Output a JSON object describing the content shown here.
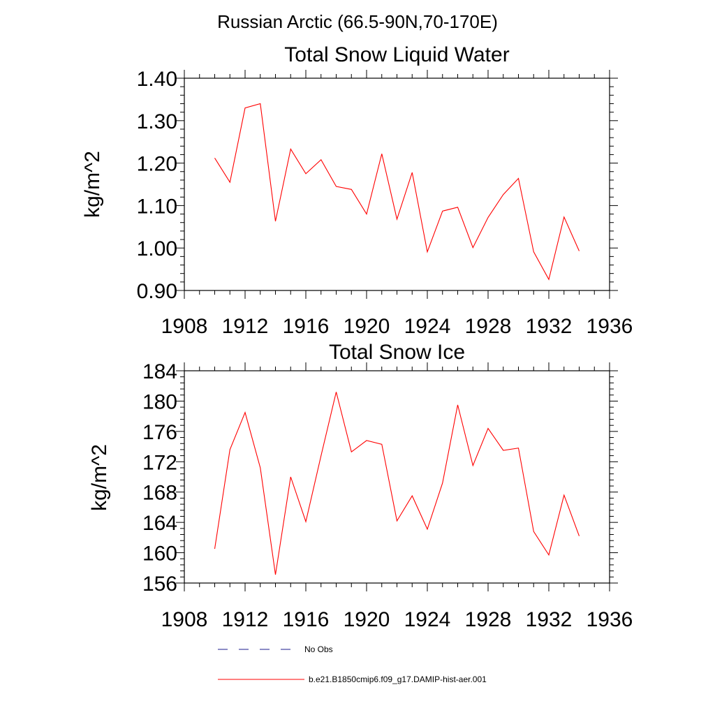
{
  "suptitle": "Russian Arctic (66.5-90N,70-170E)",
  "colors": {
    "model": "#ff0000",
    "obs": "#1a1a8c",
    "axis": "#000000"
  },
  "legend": {
    "entries": [
      {
        "label": "No Obs",
        "style": "dashed",
        "color": "#1a1a8c"
      },
      {
        "label": "b.e21.B1850cmip6.f09_g17.DAMIP-hist-aer.001",
        "style": "solid",
        "color": "#ff0000"
      }
    ]
  },
  "chart_data": [
    {
      "type": "line",
      "title": "Total Snow Liquid Water",
      "xlabel": "",
      "ylabel": "kg/m^2",
      "xlim": [
        1908,
        1936
      ],
      "ylim": [
        0.9,
        1.4
      ],
      "xticks": [
        1908,
        1912,
        1916,
        1920,
        1924,
        1928,
        1932,
        1936
      ],
      "xtick_labels": [
        "1908",
        "1912",
        "1916",
        "1920",
        "1924",
        "1928",
        "1932",
        "1936"
      ],
      "yticks": [
        0.9,
        1.0,
        1.1,
        1.2,
        1.3,
        1.4
      ],
      "ytick_labels": [
        "0.90",
        "1.00",
        "1.10",
        "1.20",
        "1.30",
        "1.40"
      ],
      "grid": false,
      "x": [
        1910,
        1911,
        1912,
        1913,
        1914,
        1915,
        1916,
        1917,
        1918,
        1919,
        1920,
        1921,
        1922,
        1923,
        1924,
        1925,
        1926,
        1927,
        1928,
        1929,
        1930,
        1931,
        1932,
        1933,
        1934
      ],
      "series": [
        {
          "name": "b.e21.B1850cmip6.f09_g17.DAMIP-hist-aer.001",
          "values": [
            1.212,
            1.155,
            1.33,
            1.34,
            1.063,
            1.233,
            1.175,
            1.208,
            1.145,
            1.138,
            1.08,
            1.222,
            1.068,
            1.178,
            0.991,
            1.087,
            1.096,
            1.001,
            1.072,
            1.126,
            1.164,
            0.991,
            0.926,
            1.073,
            0.993
          ]
        }
      ]
    },
    {
      "type": "line",
      "title": "Total Snow Ice",
      "xlabel": "",
      "ylabel": "kg/m^2",
      "xlim": [
        1908,
        1936
      ],
      "ylim": [
        156,
        184
      ],
      "xticks": [
        1908,
        1912,
        1916,
        1920,
        1924,
        1928,
        1932,
        1936
      ],
      "xtick_labels": [
        "1908",
        "1912",
        "1916",
        "1920",
        "1924",
        "1928",
        "1932",
        "1936"
      ],
      "yticks": [
        156,
        160,
        164,
        168,
        172,
        176,
        180,
        184
      ],
      "ytick_labels": [
        "156",
        "160",
        "164",
        "168",
        "172",
        "176",
        "180",
        "184"
      ],
      "grid": false,
      "x": [
        1910,
        1911,
        1912,
        1913,
        1914,
        1915,
        1916,
        1917,
        1918,
        1919,
        1920,
        1921,
        1922,
        1923,
        1924,
        1925,
        1926,
        1927,
        1928,
        1929,
        1930,
        1931,
        1932,
        1933,
        1934
      ],
      "series": [
        {
          "name": "b.e21.B1850cmip6.f09_g17.DAMIP-hist-aer.001",
          "values": [
            160.5,
            173.6,
            178.5,
            171.2,
            157.1,
            170.0,
            164.1,
            172.8,
            181.2,
            173.3,
            174.8,
            174.3,
            164.2,
            167.5,
            163.1,
            169.2,
            179.5,
            171.5,
            176.4,
            173.5,
            173.8,
            162.8,
            159.7,
            167.6,
            162.2
          ]
        }
      ]
    }
  ]
}
